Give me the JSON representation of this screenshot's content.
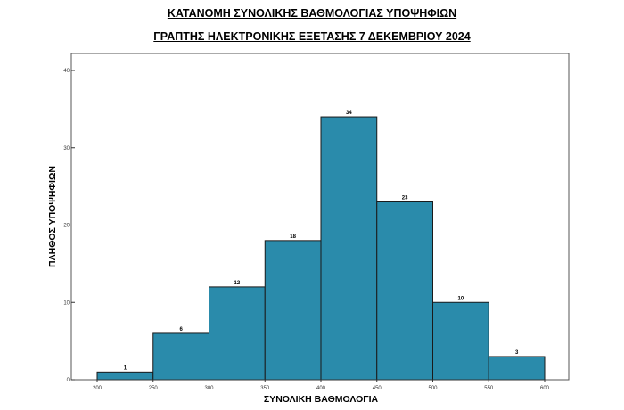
{
  "chart_data": {
    "type": "bar",
    "title": "ΚΑΤΑΝΟΜΗ ΣΥΝΟΛΙΚΗΣ ΒΑΘΜΟΛΟΓΙΑΣ ΥΠΟΨΗΦΙΩΝ",
    "subtitle": "ΓΡΑΠΤΗΣ ΗΛΕΚΤΡΟΝΙΚΗΣ ΕΞΕΤΑΣΗΣ 7 ΔΕΚΕΜΒΡΙΟΥ 2024",
    "xlabel": "ΣΥΝΟΛΙΚΗ ΒΑΘΜΟΛΟΓΙΑ",
    "ylabel": "ΠΛΗΘΟΣ ΥΠΟΨΗΦΙΩΝ",
    "bins": [
      {
        "from": 200,
        "to": 250,
        "value": 1
      },
      {
        "from": 250,
        "to": 300,
        "value": 6
      },
      {
        "from": 300,
        "to": 350,
        "value": 12
      },
      {
        "from": 350,
        "to": 400,
        "value": 18
      },
      {
        "from": 400,
        "to": 450,
        "value": 34
      },
      {
        "from": 450,
        "to": 500,
        "value": 23
      },
      {
        "from": 500,
        "to": 550,
        "value": 10
      },
      {
        "from": 550,
        "to": 600,
        "value": 3
      }
    ],
    "xticks": [
      200,
      250,
      300,
      350,
      400,
      450,
      500,
      550,
      600
    ],
    "yticks": [
      0,
      10,
      20,
      30,
      40
    ],
    "xlim": [
      200,
      600
    ],
    "ylim": [
      0,
      40
    ],
    "grid": false,
    "bar_color": "#2a8bab",
    "bar_edge_color": "#1a1a1a"
  }
}
